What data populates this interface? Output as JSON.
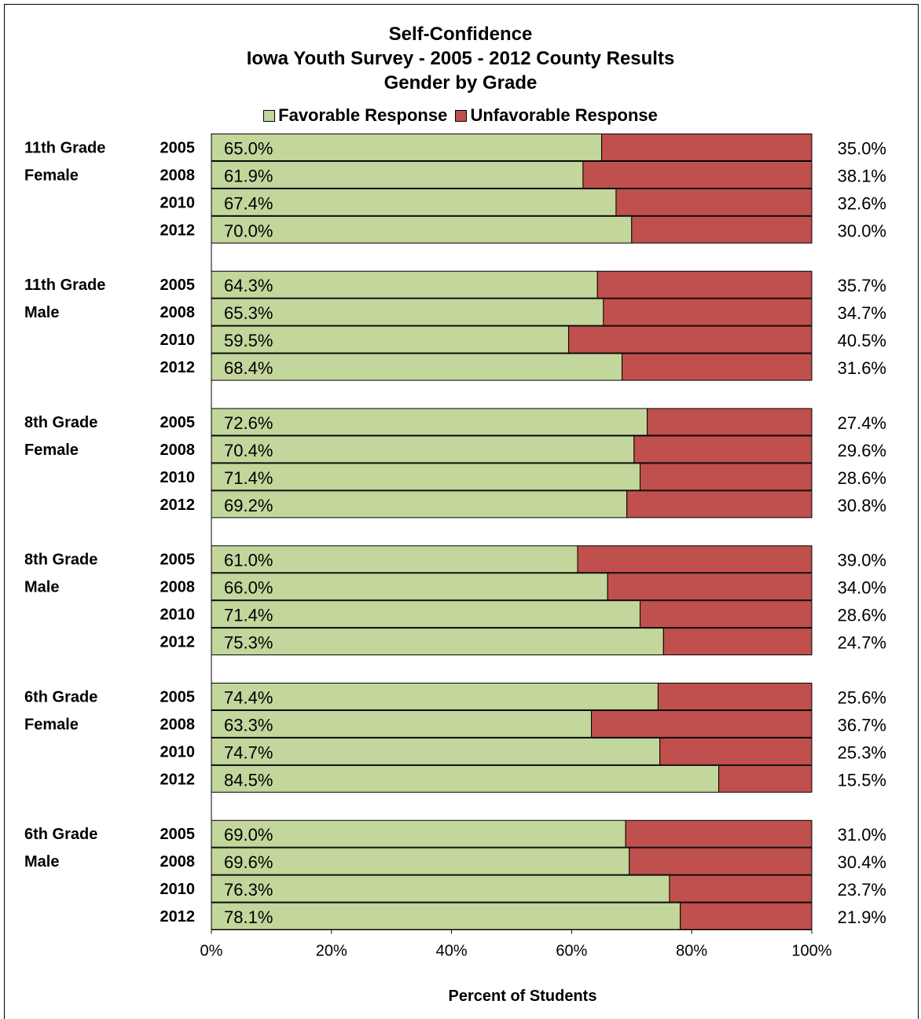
{
  "chart_data": {
    "type": "bar",
    "stacked": true,
    "orientation": "horizontal",
    "title": [
      "Self-Confidence",
      "Iowa Youth Survey - 2005 - 2012 County Results",
      "Gender by Grade"
    ],
    "xlabel": "Percent of Students",
    "xlim": [
      0,
      100
    ],
    "xticks": [
      "0%",
      "20%",
      "40%",
      "60%",
      "80%",
      "100%"
    ],
    "legend": {
      "position": "top",
      "entries": [
        "Favorable Response",
        "Unfavorable Response"
      ]
    },
    "colors": {
      "favorable": "#c3d69b",
      "unfavorable": "#c0504d"
    },
    "groups": [
      {
        "label": [
          "11th Grade",
          "Female"
        ],
        "rows": [
          {
            "year": "2005",
            "favorable": 65.0,
            "unfavorable": 35.0,
            "fav_label": "65.0%",
            "unfav_label": "35.0%"
          },
          {
            "year": "2008",
            "favorable": 61.9,
            "unfavorable": 38.1,
            "fav_label": "61.9%",
            "unfav_label": "38.1%"
          },
          {
            "year": "2010",
            "favorable": 67.4,
            "unfavorable": 32.6,
            "fav_label": "67.4%",
            "unfav_label": "32.6%"
          },
          {
            "year": "2012",
            "favorable": 70.0,
            "unfavorable": 30.0,
            "fav_label": "70.0%",
            "unfav_label": "30.0%"
          }
        ]
      },
      {
        "label": [
          "11th Grade",
          "Male"
        ],
        "rows": [
          {
            "year": "2005",
            "favorable": 64.3,
            "unfavorable": 35.7,
            "fav_label": "64.3%",
            "unfav_label": "35.7%"
          },
          {
            "year": "2008",
            "favorable": 65.3,
            "unfavorable": 34.7,
            "fav_label": "65.3%",
            "unfav_label": "34.7%"
          },
          {
            "year": "2010",
            "favorable": 59.5,
            "unfavorable": 40.5,
            "fav_label": "59.5%",
            "unfav_label": "40.5%"
          },
          {
            "year": "2012",
            "favorable": 68.4,
            "unfavorable": 31.6,
            "fav_label": "68.4%",
            "unfav_label": "31.6%"
          }
        ]
      },
      {
        "label": [
          "8th Grade",
          "Female"
        ],
        "rows": [
          {
            "year": "2005",
            "favorable": 72.6,
            "unfavorable": 27.4,
            "fav_label": "72.6%",
            "unfav_label": "27.4%"
          },
          {
            "year": "2008",
            "favorable": 70.4,
            "unfavorable": 29.6,
            "fav_label": "70.4%",
            "unfav_label": "29.6%"
          },
          {
            "year": "2010",
            "favorable": 71.4,
            "unfavorable": 28.6,
            "fav_label": "71.4%",
            "unfav_label": "28.6%"
          },
          {
            "year": "2012",
            "favorable": 69.2,
            "unfavorable": 30.8,
            "fav_label": "69.2%",
            "unfav_label": "30.8%"
          }
        ]
      },
      {
        "label": [
          "8th Grade",
          "Male"
        ],
        "rows": [
          {
            "year": "2005",
            "favorable": 61.0,
            "unfavorable": 39.0,
            "fav_label": "61.0%",
            "unfav_label": "39.0%"
          },
          {
            "year": "2008",
            "favorable": 66.0,
            "unfavorable": 34.0,
            "fav_label": "66.0%",
            "unfav_label": "34.0%"
          },
          {
            "year": "2010",
            "favorable": 71.4,
            "unfavorable": 28.6,
            "fav_label": "71.4%",
            "unfav_label": "28.6%"
          },
          {
            "year": "2012",
            "favorable": 75.3,
            "unfavorable": 24.7,
            "fav_label": "75.3%",
            "unfav_label": "24.7%"
          }
        ]
      },
      {
        "label": [
          "6th Grade",
          "Female"
        ],
        "rows": [
          {
            "year": "2005",
            "favorable": 74.4,
            "unfavorable": 25.6,
            "fav_label": "74.4%",
            "unfav_label": "25.6%"
          },
          {
            "year": "2008",
            "favorable": 63.3,
            "unfavorable": 36.7,
            "fav_label": "63.3%",
            "unfav_label": "36.7%"
          },
          {
            "year": "2010",
            "favorable": 74.7,
            "unfavorable": 25.3,
            "fav_label": "74.7%",
            "unfav_label": "25.3%"
          },
          {
            "year": "2012",
            "favorable": 84.5,
            "unfavorable": 15.5,
            "fav_label": "84.5%",
            "unfav_label": "15.5%"
          }
        ]
      },
      {
        "label": [
          "6th Grade",
          "Male"
        ],
        "rows": [
          {
            "year": "2005",
            "favorable": 69.0,
            "unfavorable": 31.0,
            "fav_label": "69.0%",
            "unfav_label": "31.0%"
          },
          {
            "year": "2008",
            "favorable": 69.6,
            "unfavorable": 30.4,
            "fav_label": "69.6%",
            "unfav_label": "30.4%"
          },
          {
            "year": "2010",
            "favorable": 76.3,
            "unfavorable": 23.7,
            "fav_label": "76.3%",
            "unfav_label": "23.7%"
          },
          {
            "year": "2012",
            "favorable": 78.1,
            "unfavorable": 21.9,
            "fav_label": "78.1%",
            "unfav_label": "21.9%"
          }
        ]
      }
    ]
  }
}
